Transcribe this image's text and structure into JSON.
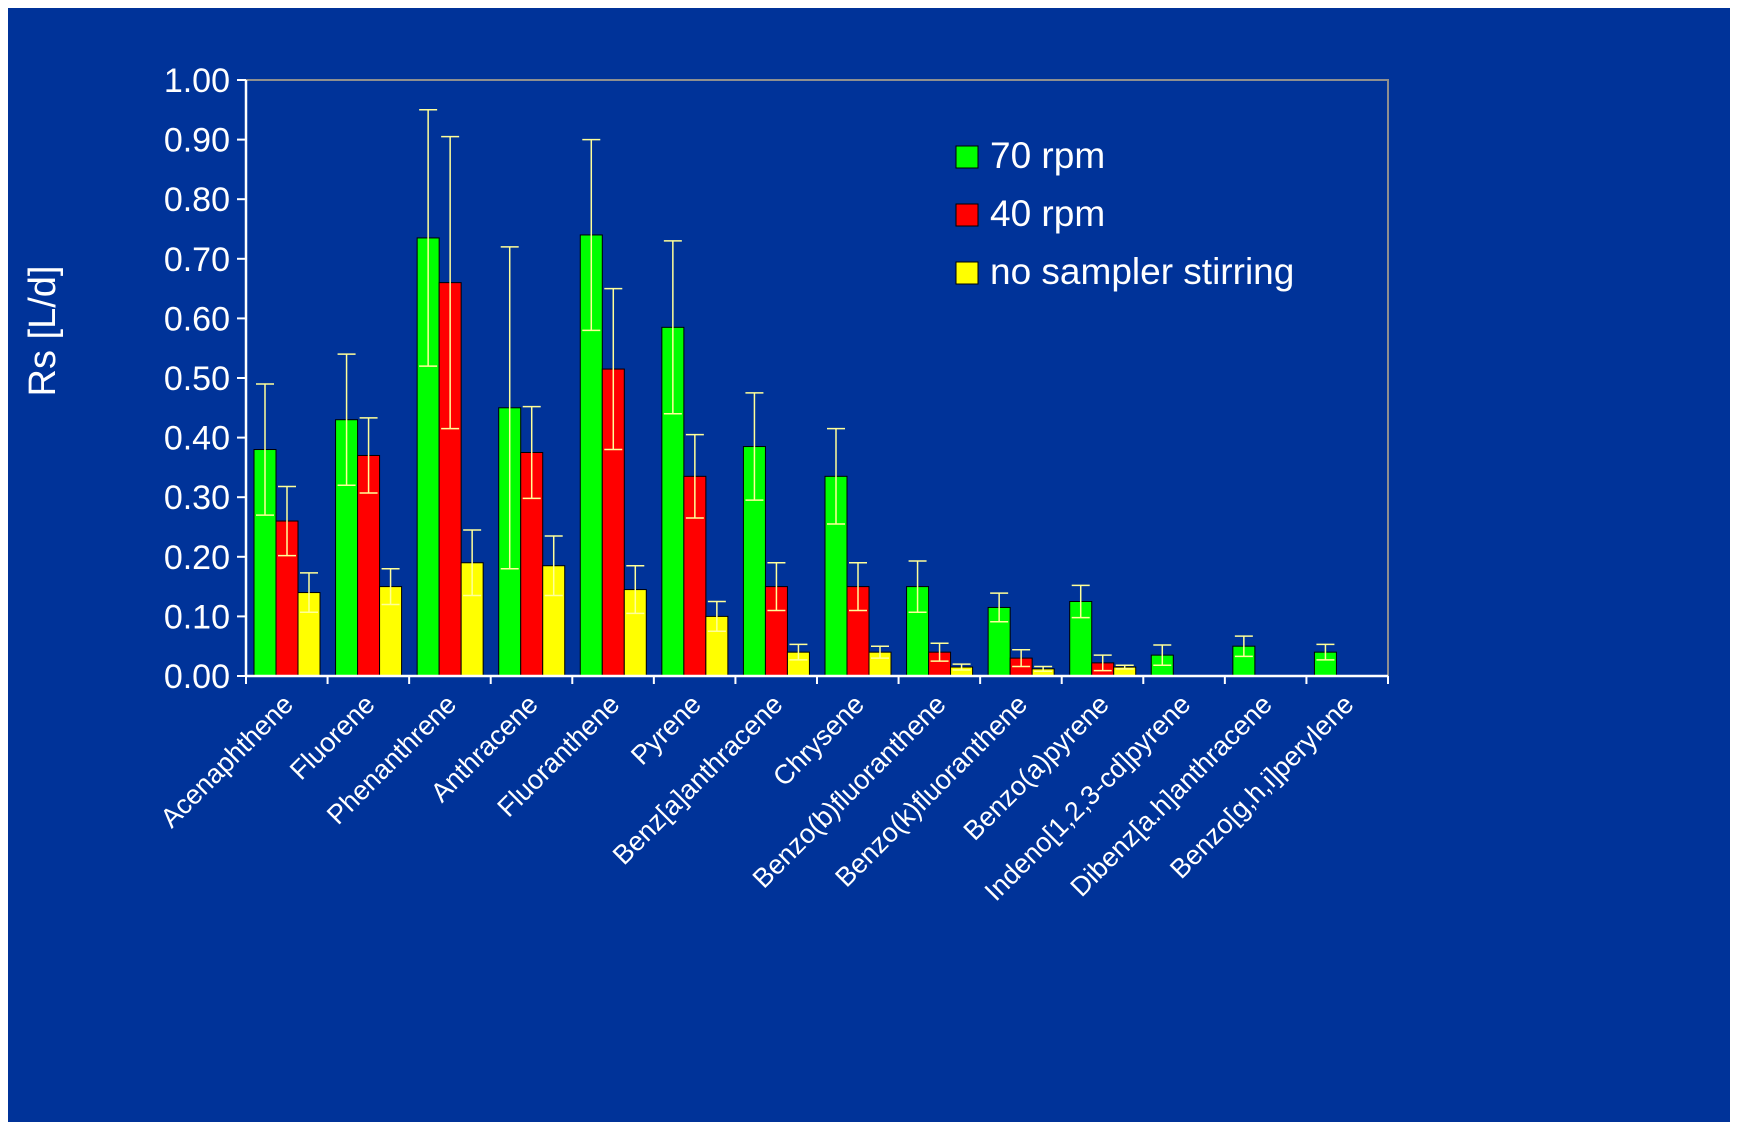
{
  "colors": {
    "background": "#003399",
    "axis": "#ffffff",
    "plot_border": "#8f8f8f",
    "error_bar": "#ffff99"
  },
  "chart_data": {
    "type": "bar",
    "ylabel": "Rs [L/d]",
    "xlabel": "",
    "ylim": [
      0,
      1.0
    ],
    "yticks": [
      "0.00",
      "0.10",
      "0.20",
      "0.30",
      "0.40",
      "0.50",
      "0.60",
      "0.70",
      "0.80",
      "0.90",
      "1.00"
    ],
    "grid": false,
    "legend_position": "top-right",
    "categories": [
      "Acenaphthene",
      "Fluorene",
      "Phenanthrene",
      "Anthracene",
      "Fluoranthene",
      "Pyrene",
      "Benz[a]anthracene",
      "Chrysene",
      "Benzo(b)fluoranthene",
      "Benzo(k)fluoranthene",
      "Benzo(a)pyrene",
      "Indeno[1,2,3-cd]pyrene",
      "Dibenz[a.h]anthracene",
      "Benzo[g,h,i]perylene"
    ],
    "series": [
      {
        "name": "70 rpm",
        "color": "#00ff00",
        "values": [
          0.38,
          0.43,
          0.735,
          0.45,
          0.74,
          0.585,
          0.385,
          0.335,
          0.15,
          0.115,
          0.125,
          0.035,
          0.05,
          0.04
        ],
        "errors": [
          0.11,
          0.11,
          0.215,
          0.27,
          0.16,
          0.145,
          0.09,
          0.08,
          0.043,
          0.024,
          0.027,
          0.017,
          0.017,
          0.013
        ]
      },
      {
        "name": "40 rpm",
        "color": "#ff0000",
        "values": [
          0.26,
          0.37,
          0.66,
          0.375,
          0.515,
          0.335,
          0.15,
          0.15,
          0.04,
          0.03,
          0.022,
          null,
          null,
          null
        ],
        "errors": [
          0.058,
          0.063,
          0.245,
          0.077,
          0.135,
          0.07,
          0.04,
          0.04,
          0.015,
          0.014,
          0.013,
          null,
          null,
          null
        ]
      },
      {
        "name": "no sampler stirring",
        "color": "#ffff00",
        "values": [
          0.14,
          0.15,
          0.19,
          0.185,
          0.145,
          0.1,
          0.04,
          0.04,
          0.015,
          0.012,
          0.015,
          null,
          null,
          null
        ],
        "errors": [
          0.033,
          0.03,
          0.055,
          0.05,
          0.04,
          0.025,
          0.013,
          0.01,
          0.005,
          0.004,
          0.003,
          null,
          null,
          null
        ]
      }
    ]
  }
}
